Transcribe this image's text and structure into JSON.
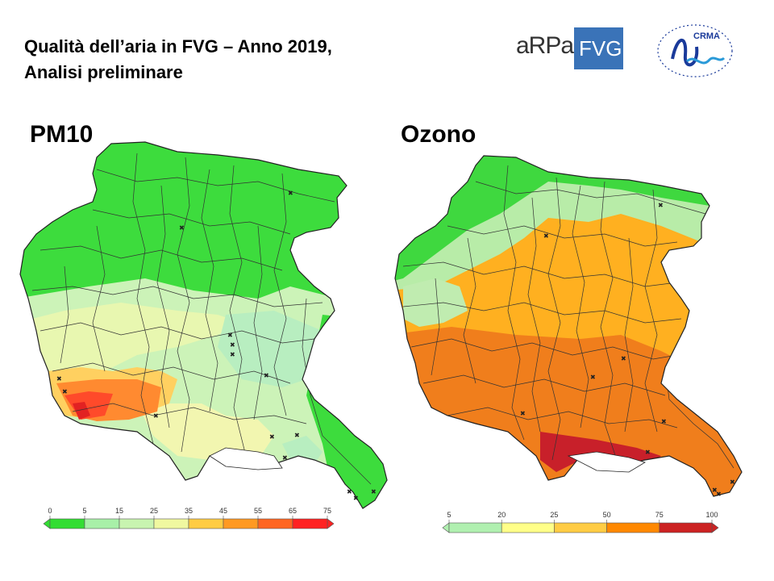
{
  "header": {
    "title_line1": "Qualità dell’aria  in FVG – Anno 2019,",
    "title_line2": "Analisi preliminare"
  },
  "logos": {
    "arpa_left": "aRPa",
    "arpa_right": "FVG",
    "crma": "CRMA"
  },
  "maps": [
    {
      "heading": "PM10",
      "legend_ticks": [
        "0",
        "5",
        "15",
        "25",
        "35",
        "45",
        "55",
        "65",
        "75"
      ],
      "legend_colors": [
        "#33dd33",
        "#a8f0a8",
        "#c8f4b0",
        "#f0f8a0",
        "#ffcc44",
        "#ff9922",
        "#ff6622",
        "#ff2222"
      ]
    },
    {
      "heading": "Ozono",
      "legend_ticks": [
        "5",
        "20",
        "25",
        "50",
        "75",
        "100"
      ],
      "legend_colors": [
        "#b0f0b0",
        "#ffff88",
        "#ffcc44",
        "#ff8800",
        "#cc2222"
      ]
    }
  ]
}
